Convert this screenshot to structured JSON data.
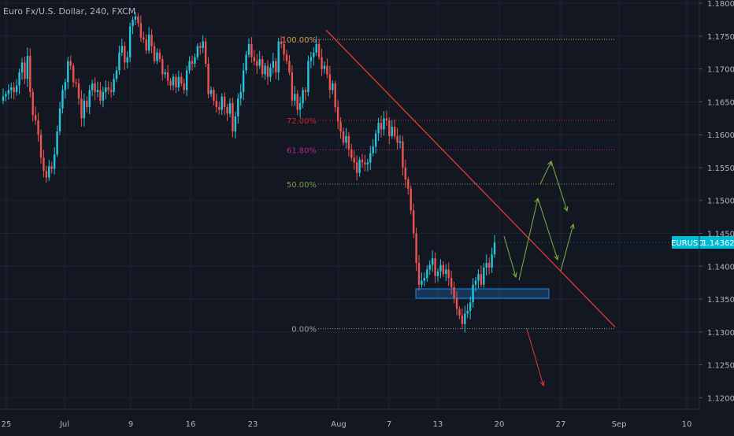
{
  "colors": {
    "background": "#131722",
    "grid": "#1f2330",
    "up": "#26c6da",
    "down": "#ef5350",
    "axis_text": "#b2b5be",
    "trend": "#e53935",
    "price_tag": "#00bcd4",
    "fib_100": "#d4a04a",
    "fib_72": "#c62828",
    "fib_61": "#b0268c",
    "fib_50": "#7a9a40",
    "fib_0": "#9e9e9e",
    "zone": "#1e88e5",
    "arrow_green": "#7cb342",
    "arrow_red": "#e53935"
  },
  "chart_data": {
    "type": "candlestick",
    "title": "Euro Fx/U.S. Dollar, 240, FXCM",
    "symbol": "EURUSD",
    "last_price": "1.14362",
    "ylim": [
      1.118,
      1.1805
    ],
    "y_ticks": [
      "1.18000",
      "1.17500",
      "1.17000",
      "1.16500",
      "1.16000",
      "1.15500",
      "1.15000",
      "1.14500",
      "1.14000",
      "1.13500",
      "1.13000",
      "1.12500",
      "1.12000"
    ],
    "x_ticks": [
      "25",
      "Jul",
      "9",
      "16",
      "23",
      "Aug",
      "7",
      "13",
      "20",
      "27",
      "Sep",
      "10"
    ],
    "grid": true,
    "series": {
      "values": [
        1.1658,
        1.1662,
        1.1668,
        1.1672,
        1.1665,
        1.1675,
        1.1695,
        1.171,
        1.1685,
        1.172,
        1.1665,
        1.163,
        1.1622,
        1.16,
        1.1565,
        1.1545,
        1.1535,
        1.1552,
        1.1548,
        1.157,
        1.1605,
        1.164,
        1.1668,
        1.168,
        1.1712,
        1.1705,
        1.168,
        1.1678,
        1.1655,
        1.1625,
        1.1652,
        1.1642,
        1.1668,
        1.1678,
        1.1665,
        1.1668,
        1.1652,
        1.1665,
        1.1672,
        1.1668,
        1.1665,
        1.1685,
        1.1698,
        1.1725,
        1.1735,
        1.171,
        1.1718,
        1.1765,
        1.1775,
        1.178,
        1.177,
        1.1748,
        1.1745,
        1.1728,
        1.1752,
        1.1735,
        1.1712,
        1.1725,
        1.1715,
        1.1692,
        1.1695,
        1.1682,
        1.1675,
        1.1688,
        1.1672,
        1.1688,
        1.1678,
        1.1668,
        1.1698,
        1.1712,
        1.1708,
        1.1718,
        1.1735,
        1.1732,
        1.1742,
        1.1708,
        1.1662,
        1.1668,
        1.1652,
        1.1642,
        1.1638,
        1.1658,
        1.1642,
        1.1632,
        1.1648,
        1.1605,
        1.1628,
        1.1655,
        1.1665,
        1.1698,
        1.1722,
        1.1738,
        1.1718,
        1.1712,
        1.1705,
        1.1715,
        1.1692,
        1.1705,
        1.1688,
        1.1702,
        1.1712,
        1.1695,
        1.1742,
        1.1738,
        1.1722,
        1.1712,
        1.1695,
        1.1652,
        1.1662,
        1.1638,
        1.1648,
        1.1668,
        1.1665,
        1.1712,
        1.1718,
        1.1725,
        1.1738,
        1.1718,
        1.17,
        1.1705,
        1.1692,
        1.1668,
        1.1678,
        1.1642,
        1.162,
        1.1605,
        1.1588,
        1.1598,
        1.1578,
        1.1565,
        1.1558,
        1.1542,
        1.1562,
        1.1558,
        1.1555,
        1.1558,
        1.1572,
        1.1582,
        1.1602,
        1.1618,
        1.1608,
        1.1625,
        1.1622,
        1.1598,
        1.1612,
        1.1598,
        1.1588,
        1.159,
        1.155,
        1.1532,
        1.1518,
        1.1485,
        1.145,
        1.1405,
        1.1372,
        1.1378,
        1.1382,
        1.1395,
        1.1402,
        1.1412,
        1.1385,
        1.1392,
        1.1402,
        1.1388,
        1.1395,
        1.1382,
        1.1368,
        1.1352,
        1.1335,
        1.1325,
        1.1312,
        1.1328,
        1.1332,
        1.1345,
        1.1372,
        1.1378,
        1.1388,
        1.1372,
        1.1398,
        1.1405,
        1.1398,
        1.1418,
        1.1436
      ]
    },
    "fib_levels": [
      {
        "label": "100.00%",
        "value": 1.1745
      },
      {
        "label": "72.00%",
        "value": 1.1622
      },
      {
        "label": "61.80%",
        "value": 1.1577
      },
      {
        "label": "50.00%",
        "value": 1.1525
      },
      {
        "label": "0.00%",
        "value": 1.1305
      }
    ]
  }
}
